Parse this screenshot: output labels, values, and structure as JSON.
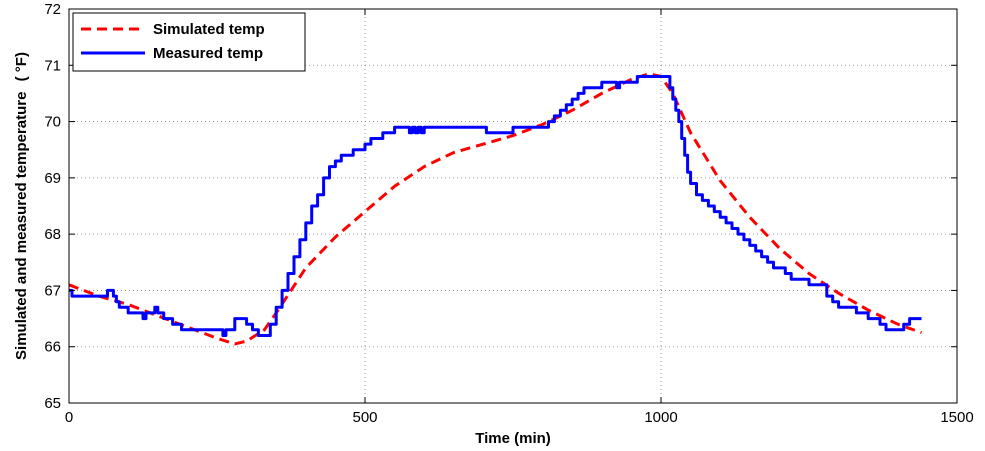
{
  "chart_data": {
    "type": "line",
    "title": "",
    "xlabel": "Time (min)",
    "ylabel": "Simulated and measured temperature",
    "ylabel_unit": "( °F)",
    "xlim": [
      0,
      1500
    ],
    "ylim": [
      65,
      72
    ],
    "xticks": [
      0,
      500,
      1000,
      1500
    ],
    "yticks": [
      65,
      66,
      67,
      68,
      69,
      70,
      71,
      72
    ],
    "grid": true,
    "legend_position": "top-left",
    "series": [
      {
        "name": "Simulated temp",
        "color": "#ff0000",
        "style": "dashed",
        "x": [
          0,
          50,
          100,
          150,
          200,
          250,
          280,
          300,
          330,
          350,
          400,
          450,
          500,
          550,
          600,
          650,
          700,
          750,
          800,
          850,
          900,
          950,
          980,
          1000,
          1020,
          1050,
          1100,
          1150,
          1200,
          1250,
          1300,
          1350,
          1400,
          1440
        ],
        "values": [
          67.1,
          66.9,
          66.75,
          66.55,
          66.35,
          66.15,
          66.05,
          66.1,
          66.3,
          66.6,
          67.4,
          67.95,
          68.4,
          68.85,
          69.2,
          69.45,
          69.6,
          69.75,
          69.95,
          70.2,
          70.5,
          70.75,
          70.85,
          70.8,
          70.5,
          69.8,
          68.95,
          68.3,
          67.75,
          67.3,
          66.95,
          66.65,
          66.4,
          66.25
        ]
      },
      {
        "name": "Measured temp",
        "color": "#0000ff",
        "style": "solid",
        "x": [
          0,
          5,
          60,
          65,
          70,
          75,
          80,
          85,
          90,
          100,
          105,
          110,
          120,
          125,
          130,
          140,
          145,
          150,
          155,
          160,
          170,
          175,
          180,
          190,
          200,
          210,
          220,
          250,
          260,
          262,
          265,
          270,
          280,
          285,
          290,
          300,
          310,
          320,
          325,
          330,
          340,
          350,
          360,
          370,
          380,
          390,
          400,
          410,
          420,
          430,
          440,
          450,
          460,
          470,
          480,
          490,
          500,
          510,
          520,
          530,
          540,
          550,
          560,
          570,
          575,
          580,
          585,
          590,
          595,
          600,
          610,
          650,
          700,
          705,
          720,
          740,
          750,
          770,
          780,
          800,
          810,
          820,
          830,
          840,
          850,
          860,
          870,
          880,
          890,
          900,
          910,
          920,
          925,
          930,
          940,
          960,
          980,
          1000,
          1010,
          1015,
          1020,
          1025,
          1030,
          1035,
          1040,
          1045,
          1050,
          1060,
          1070,
          1080,
          1090,
          1100,
          1110,
          1120,
          1130,
          1140,
          1150,
          1160,
          1170,
          1180,
          1190,
          1200,
          1210,
          1220,
          1230,
          1240,
          1250,
          1260,
          1270,
          1280,
          1290,
          1300,
          1310,
          1320,
          1330,
          1340,
          1350,
          1360,
          1370,
          1380,
          1390,
          1400,
          1410,
          1420,
          1430,
          1440
        ],
        "values": [
          67.0,
          66.9,
          66.9,
          67.0,
          67.0,
          66.9,
          66.8,
          66.7,
          66.7,
          66.6,
          66.6,
          66.6,
          66.6,
          66.5,
          66.6,
          66.6,
          66.7,
          66.6,
          66.6,
          66.5,
          66.5,
          66.4,
          66.4,
          66.3,
          66.3,
          66.3,
          66.3,
          66.3,
          66.2,
          66.2,
          66.3,
          66.3,
          66.5,
          66.5,
          66.5,
          66.4,
          66.3,
          66.2,
          66.2,
          66.2,
          66.4,
          66.7,
          67.0,
          67.3,
          67.6,
          67.9,
          68.2,
          68.5,
          68.7,
          69.0,
          69.2,
          69.3,
          69.4,
          69.4,
          69.5,
          69.5,
          69.6,
          69.7,
          69.7,
          69.8,
          69.8,
          69.9,
          69.9,
          69.9,
          69.8,
          69.9,
          69.8,
          69.9,
          69.8,
          69.9,
          69.9,
          69.9,
          69.9,
          69.8,
          69.8,
          69.8,
          69.9,
          69.9,
          69.9,
          69.9,
          70.0,
          70.1,
          70.2,
          70.3,
          70.4,
          70.5,
          70.6,
          70.6,
          70.6,
          70.7,
          70.7,
          70.7,
          70.6,
          70.7,
          70.7,
          70.8,
          70.8,
          70.8,
          70.8,
          70.6,
          70.4,
          70.2,
          70.0,
          69.7,
          69.4,
          69.1,
          68.9,
          68.7,
          68.6,
          68.5,
          68.4,
          68.3,
          68.2,
          68.1,
          68.0,
          67.9,
          67.8,
          67.7,
          67.6,
          67.5,
          67.4,
          67.4,
          67.3,
          67.2,
          67.2,
          67.2,
          67.1,
          67.1,
          67.1,
          66.9,
          66.8,
          66.7,
          66.7,
          66.7,
          66.6,
          66.6,
          66.5,
          66.5,
          66.4,
          66.3,
          66.3,
          66.3,
          66.4,
          66.5,
          66.5,
          66.5
        ]
      }
    ]
  }
}
